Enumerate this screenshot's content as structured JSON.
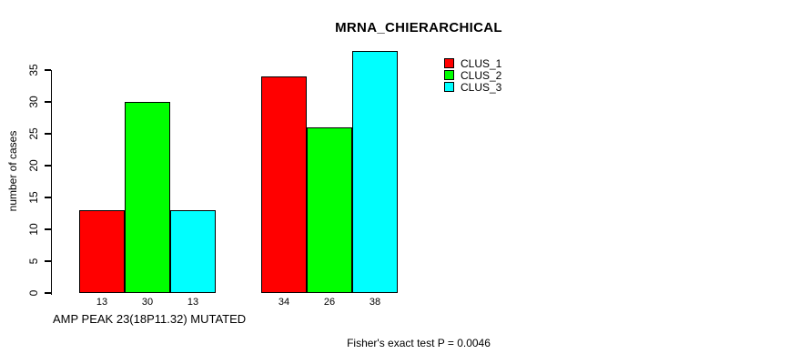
{
  "chart_data": {
    "type": "bar",
    "title": "MRNA_CHIERARCHICAL",
    "ylabel": "number of cases",
    "xlabel": "AMP PEAK 23(18P11.32) MUTATED",
    "footnote": "Fisher's exact test P = 0.0046",
    "ylim": [
      0,
      38
    ],
    "yticks": [
      0,
      5,
      10,
      15,
      20,
      25,
      30,
      35
    ],
    "grid": false,
    "legend_position": "top-right",
    "num_groups": 2,
    "series": [
      {
        "name": "CLUS_1",
        "color": "#ff0000",
        "values": [
          13,
          34
        ]
      },
      {
        "name": "CLUS_2",
        "color": "#00ff00",
        "values": [
          30,
          26
        ]
      },
      {
        "name": "CLUS_3",
        "color": "#00ffff",
        "values": [
          13,
          38
        ]
      }
    ]
  }
}
